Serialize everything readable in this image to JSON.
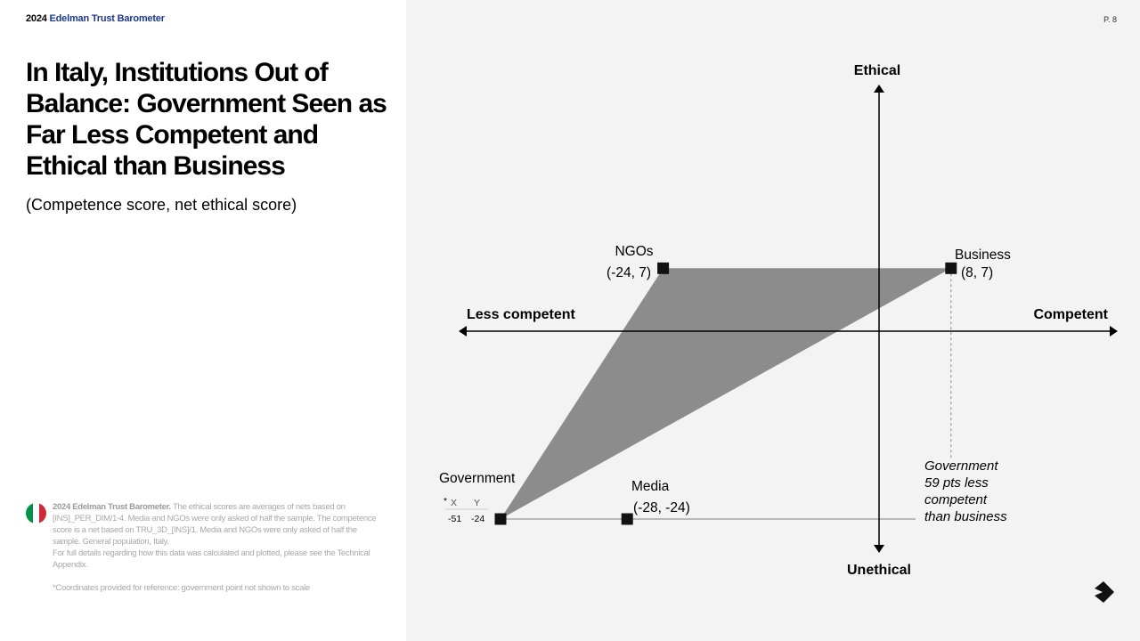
{
  "header": {
    "year": "2024",
    "brand": "Edelman Trust Barometer",
    "page": "P. 8"
  },
  "title": "In Italy, Institutions Out of Balance: Government Seen as Far Less Competent and Ethical than Business",
  "subtitle": "(Competence score, net ethical score)",
  "footnote": {
    "bold": "2024 Edelman Trust Barometer.",
    "text": " The ethical scores are averages of nets based on [INS]_PER_DIM/1-4. Media and NGOs were only asked of half the sample. The competence score is a net based on TRU_3D_[INS]/1. Media and NGOs were only asked of half the sample. General population, Italy.",
    "details": "For full details regarding how this data was calculated and plotted, please see the Technical Appendix.",
    "star_note": "*Coordinates provided for reference: government point not shown to scale"
  },
  "colors": {
    "brand": "#1e3a8a",
    "triangle": "#8c8c8c",
    "marker": "#111111",
    "flag": [
      "#009246",
      "#ffffff",
      "#ce2b37"
    ]
  },
  "chart_data": {
    "type": "scatter",
    "axes": {
      "top": "Ethical",
      "bottom": "Unethical",
      "left": "Less competent",
      "right": "Competent"
    },
    "points": [
      {
        "name": "NGOs",
        "label": "(-24, 7)",
        "x": -24,
        "y": 7
      },
      {
        "name": "Business",
        "label": "(8, 7)",
        "x": 8,
        "y": 7
      },
      {
        "name": "Media",
        "label": "(-28, -24)",
        "x": -28,
        "y": -24
      },
      {
        "name": "Government",
        "x": -51,
        "y": -24,
        "not_to_scale": true
      }
    ],
    "shaded_triangle": [
      "Government",
      "NGOs",
      "Business"
    ],
    "government_coords": {
      "star": "*",
      "x_header": "X",
      "y_header": "Y",
      "x": "-51",
      "y": "-24"
    },
    "annotation": [
      "Government",
      "59 pts less",
      "competent",
      "than business"
    ]
  }
}
